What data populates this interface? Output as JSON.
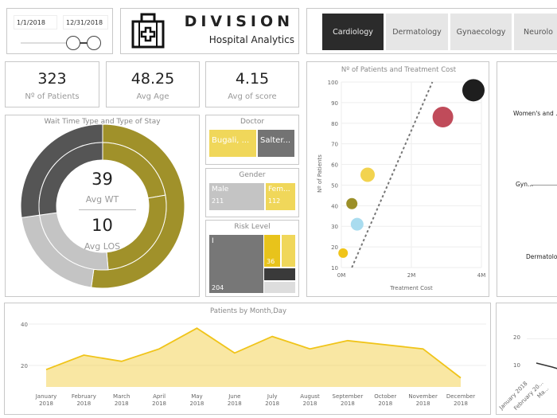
{
  "date_slicer": {
    "start": "1/1/2018",
    "end": "12/31/2018"
  },
  "header": {
    "title": "DIVISION",
    "subtitle": "Hospital Analytics",
    "logo_icon": "medical-kit-icon"
  },
  "tabs": [
    {
      "label": "Cardiology",
      "active": true
    },
    {
      "label": "Dermatology"
    },
    {
      "label": "Gynaecology"
    },
    {
      "label": "Neurolo"
    }
  ],
  "kpis": [
    {
      "value": "323",
      "label": "Nº of Patients"
    },
    {
      "value": "48.25",
      "label": "Avg Age"
    },
    {
      "value": "4.15",
      "label": "Avg of score"
    }
  ],
  "donut": {
    "title": "Wait Time Type and Type of Stay",
    "avg_wt": "39",
    "avg_wt_label": "Avg WT",
    "avg_los": "10",
    "avg_los_label": "Avg LOS",
    "colors": [
      "#a0912a",
      "#c4c4c4",
      "#555555"
    ]
  },
  "doctor": {
    "title": "Doctor",
    "items": [
      {
        "label": "Bugali, ...",
        "color": "#f0d75a"
      },
      {
        "label": "Salter...",
        "color": "#737373"
      }
    ]
  },
  "gender": {
    "title": "Gender",
    "items": [
      {
        "label": "Male",
        "value": "211",
        "color": "#c4c4c4"
      },
      {
        "label": "Fem...",
        "value": "112",
        "color": "#f0d75a"
      }
    ]
  },
  "risk": {
    "title": "Risk Level",
    "items": [
      {
        "label": "I",
        "value": "204"
      },
      {
        "label": "",
        "value": "36"
      }
    ]
  },
  "right_panel": {
    "labels": [
      "Women's and ...",
      "Gyn...",
      "Dermatolog..."
    ]
  },
  "bottom_right": {
    "y_ticks": [
      "20",
      "10"
    ],
    "x_labels": [
      "January 2018",
      "February 20...",
      "Ma..."
    ]
  },
  "chart_data": [
    {
      "type": "scatter",
      "title": "Nº of Patients and Treatment Cost",
      "xlabel": "Treatment Cost",
      "ylabel": "Nº of Patients",
      "xlim": [
        0,
        4000000
      ],
      "ylim": [
        10,
        100
      ],
      "x_ticks": [
        "0M",
        "2M",
        "4M"
      ],
      "y_ticks": [
        "100",
        "90",
        "80",
        "70",
        "60",
        "50",
        "40",
        "30",
        "20",
        "10"
      ],
      "points": [
        {
          "x": 3800000,
          "y": 96,
          "size": 14,
          "color": "#1e1e1e"
        },
        {
          "x": 2900000,
          "y": 83,
          "size": 13,
          "color": "#c04b5a"
        },
        {
          "x": 750000,
          "y": 55,
          "size": 9,
          "color": "#f2d34f"
        },
        {
          "x": 300000,
          "y": 41,
          "size": 7,
          "color": "#9b8f28"
        },
        {
          "x": 450000,
          "y": 31,
          "size": 8,
          "color": "#a9dcef"
        },
        {
          "x": 50000,
          "y": 17,
          "size": 6,
          "color": "#f0c419"
        }
      ],
      "trendline": [
        {
          "x": 300000,
          "y": 10
        },
        {
          "x": 2600000,
          "y": 100
        }
      ]
    },
    {
      "type": "area",
      "title": "Patients by Month,Day",
      "y_ticks": [
        "40",
        "20"
      ],
      "categories": [
        "January 2018",
        "February 2018",
        "March 2018",
        "April 2018",
        "May 2018",
        "June 2018",
        "July 2018",
        "August 2018",
        "September 2018",
        "October 2018",
        "November 2018",
        "December 2018"
      ],
      "values": [
        18,
        25,
        22,
        28,
        38,
        26,
        34,
        28,
        32,
        30,
        28,
        14
      ],
      "color": "#f0c419"
    }
  ]
}
